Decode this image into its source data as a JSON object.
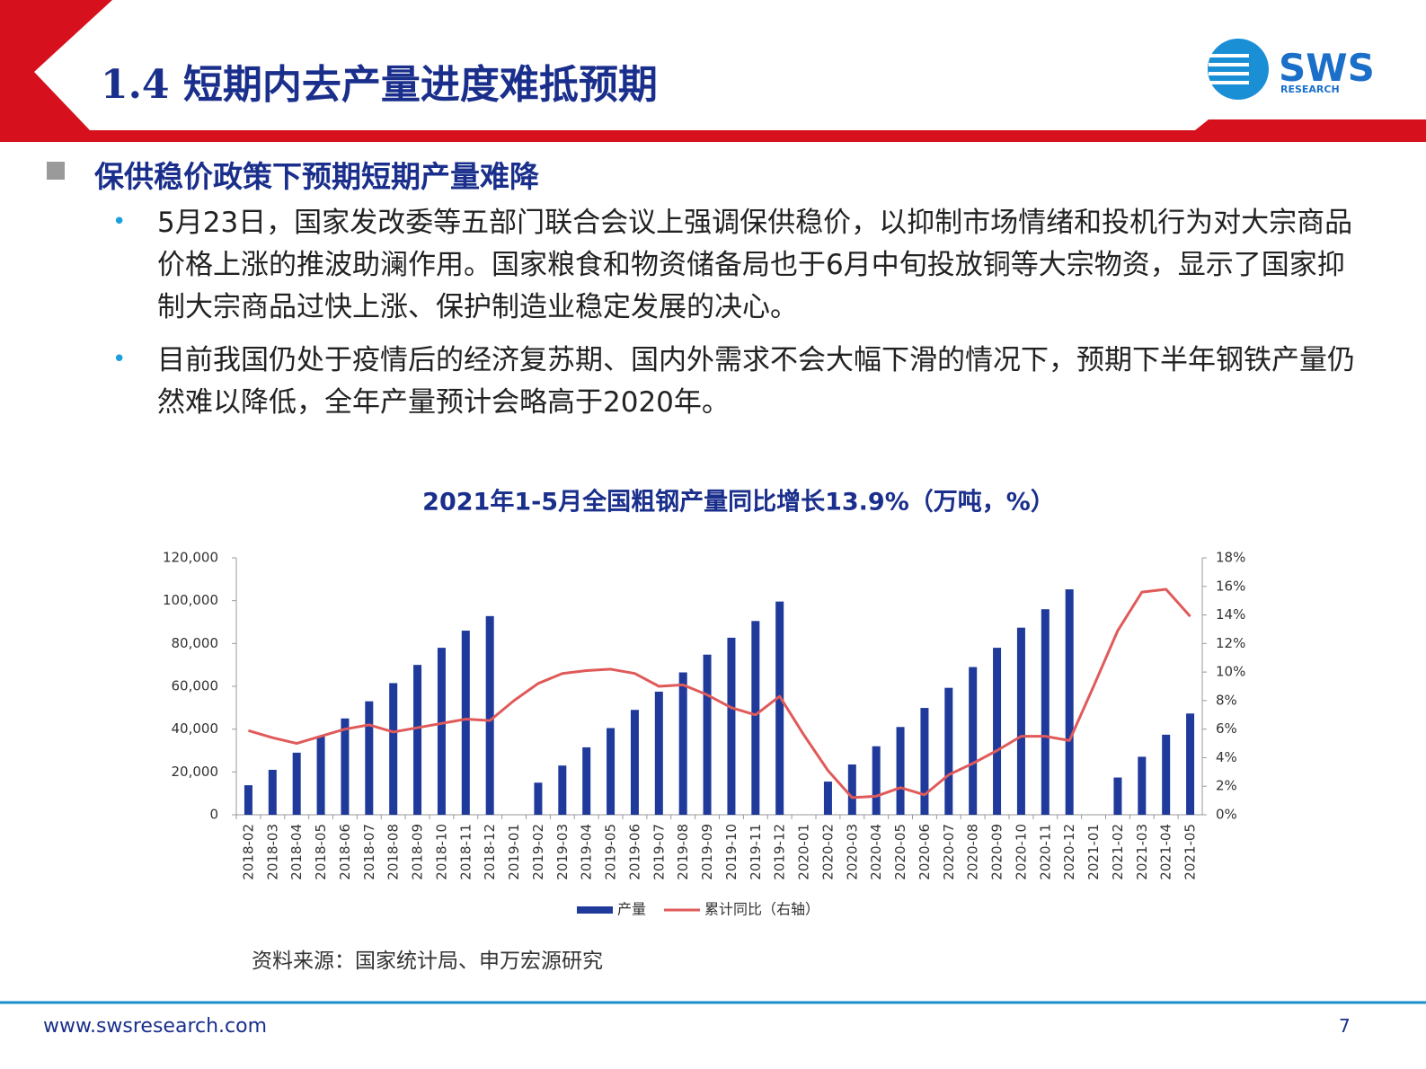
{
  "header": {
    "title": "1.4 短期内去产量进度难抵预期",
    "logo": "SWS",
    "logo_sub": "RESEARCH"
  },
  "body": {
    "heading": "保供稳价政策下预期短期产量难降",
    "bullets": [
      "5月23日，国家发改委等五部门联合会议上强调保供稳价，以抑制市场情绪和投机行为对大宗商品价格上涨的推波助澜作用。国家粮食和物资储备局也于6月中旬投放铜等大宗物资，显示了国家抑制大宗商品过快上涨、保护制造业稳定发展的决心。",
      "目前我国仍处于疫情后的经济复苏期、国内外需求不会大幅下滑的情况下，预期下半年钢铁产量仍然难以降低，全年产量预计会略高于2020年。"
    ]
  },
  "chart_data": {
    "type": "bar-line",
    "title": "2021年1-5月全国粗钢产量同比增长13.9%（万吨，%）",
    "categories": [
      "2018-02",
      "2018-03",
      "2018-04",
      "2018-05",
      "2018-06",
      "2018-07",
      "2018-08",
      "2018-09",
      "2018-10",
      "2018-11",
      "2018-12",
      "2019-01",
      "2019-02",
      "2019-03",
      "2019-04",
      "2019-05",
      "2019-06",
      "2019-07",
      "2019-08",
      "2019-09",
      "2019-10",
      "2019-11",
      "2019-12",
      "2020-01",
      "2020-02",
      "2020-03",
      "2020-04",
      "2020-05",
      "2020-06",
      "2020-07",
      "2020-08",
      "2020-09",
      "2020-10",
      "2020-11",
      "2020-12",
      "2021-01",
      "2021-02",
      "2021-03",
      "2021-04",
      "2021-05"
    ],
    "series": [
      {
        "name": "产量",
        "type": "bar",
        "color": "#1f3a9a",
        "values": [
          13800,
          21000,
          29000,
          36500,
          45000,
          53000,
          61500,
          70000,
          78000,
          86000,
          92800,
          null,
          15000,
          23000,
          31500,
          40500,
          49000,
          57500,
          66500,
          74800,
          82700,
          90500,
          99600,
          null,
          15500,
          23500,
          32000,
          41000,
          49900,
          59300,
          69000,
          78000,
          87400,
          96000,
          105300,
          null,
          17400,
          27100,
          37400,
          47300
        ]
      },
      {
        "name": "累计同比（右轴）",
        "type": "line",
        "axis": "y2",
        "color": "#e05a5a",
        "values": [
          5.9,
          5.4,
          5.0,
          5.5,
          6.0,
          6.3,
          5.8,
          6.1,
          6.4,
          6.7,
          6.6,
          8.0,
          9.2,
          9.9,
          10.1,
          10.2,
          9.9,
          9.0,
          9.1,
          8.4,
          7.5,
          7.0,
          8.3,
          5.6,
          3.1,
          1.2,
          1.3,
          1.9,
          1.4,
          2.8,
          3.6,
          4.5,
          5.5,
          5.5,
          5.2,
          9.0,
          12.9,
          15.6,
          15.8,
          13.9
        ]
      }
    ],
    "ylim": [
      0,
      120000
    ],
    "yticks": [
      0,
      {
        "value": 20000,
        "label": "20,000"
      },
      {
        "value": 40000,
        "label": "40,000"
      },
      {
        "value": 60000,
        "label": "60,000"
      },
      {
        "value": 80000,
        "label": "80,000"
      },
      {
        "value": 100000,
        "label": "100,000"
      },
      {
        "value": 120000,
        "label": "120,000"
      }
    ],
    "y2lim": [
      0,
      18
    ],
    "y2ticks": [
      {
        "value": 0,
        "label": "0%"
      },
      {
        "value": 2,
        "label": "2%"
      },
      {
        "value": 4,
        "label": "4%"
      },
      {
        "value": 6,
        "label": "6%"
      },
      {
        "value": 8,
        "label": "8%"
      },
      {
        "value": 10,
        "label": "10%"
      },
      {
        "value": 12,
        "label": "12%"
      },
      {
        "value": 14,
        "label": "14%"
      },
      {
        "value": 16,
        "label": "16%"
      },
      {
        "value": 18,
        "label": "18%"
      }
    ],
    "grid": false,
    "legend": "bottom"
  },
  "footer": {
    "source": "资料来源：国家统计局、申万宏源研究",
    "website": "www.swsresearch.com",
    "page": "7"
  }
}
